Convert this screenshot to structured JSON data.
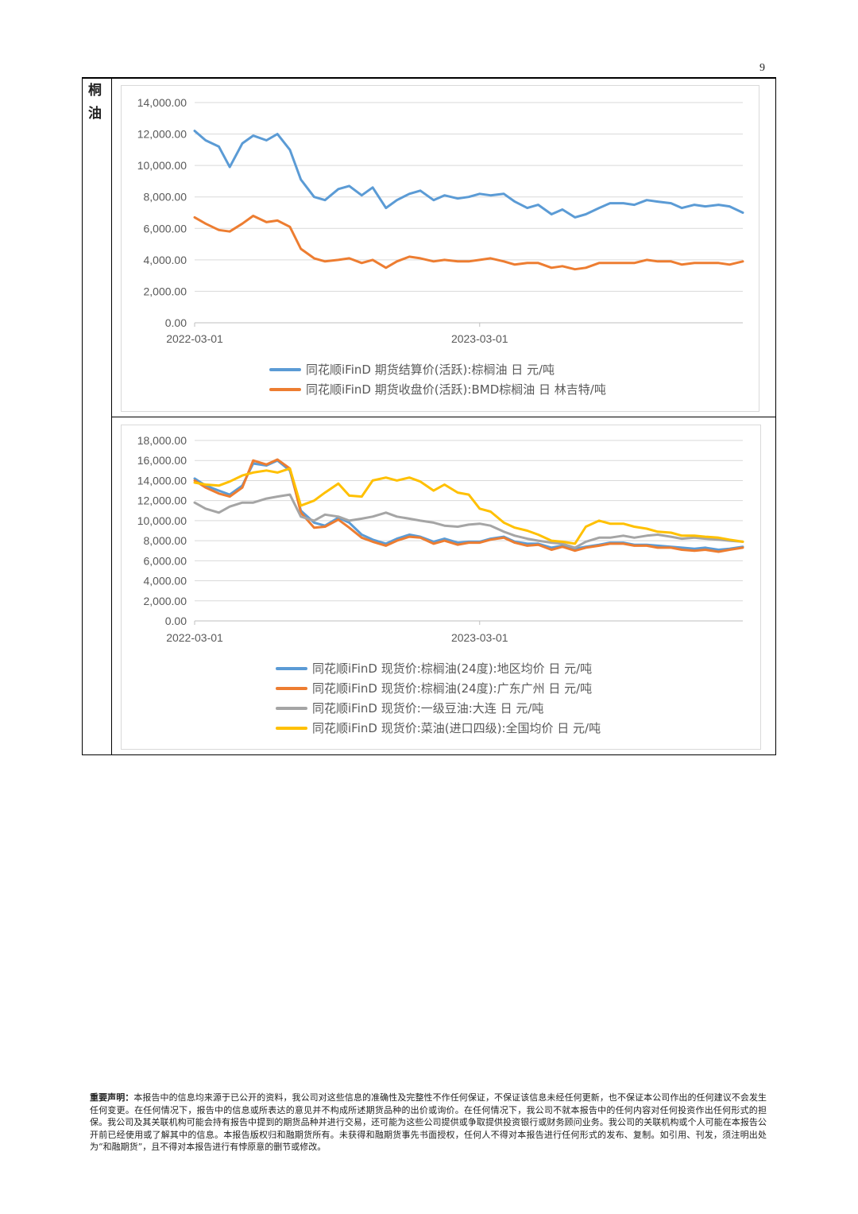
{
  "page": {
    "number": "9"
  },
  "section": {
    "label": "桐油"
  },
  "disclaimer": {
    "heading": "重要声明：",
    "text": "本报告中的信息均来源于已公开的资料，我公司对这些信息的准确性及完整性不作任何保证，不保证该信息未经任何更新，也不保证本公司作出的任何建议不会发生任何变更。在任何情况下，报告中的信息或所表达的意见并不构成所述期货品种的出价或询价。在任何情况下，我公司不就本报告中的任何内容对任何投资作出任何形式的担保。我公司及其关联机构可能会持有报告中提到的期货品种并进行交易，还可能为这些公司提供或争取提供投资银行或财务顾问业务。我公司的关联机构或个人可能在本报告公开前已经使用或了解其中的信息。本报告版权归和融期货所有。未获得和融期货事先书面授权，任何人不得对本报告进行任何形式的发布、复制。如引用、刊发，须注明出处为“和融期货”，且不得对本报告进行有悖原意的删节或修改。"
  },
  "chart_data": [
    {
      "type": "line",
      "title": "",
      "xlabel": "",
      "ylabel": "",
      "ylim": [
        0,
        14000
      ],
      "yticks": [
        "14,000.00",
        "12,000.00",
        "10,000.00",
        "8,000.00",
        "6,000.00",
        "4,000.00",
        "2,000.00",
        "0.00"
      ],
      "xticks": [
        "2022-03-01",
        "2023-03-01"
      ],
      "grid": true,
      "legend_position": "bottom",
      "x": [
        "2022-03-01",
        "2022-03-15",
        "2022-04-01",
        "2022-04-15",
        "2022-05-01",
        "2022-05-15",
        "2022-06-01",
        "2022-06-15",
        "2022-07-01",
        "2022-07-15",
        "2022-08-01",
        "2022-08-15",
        "2022-09-01",
        "2022-09-15",
        "2022-10-01",
        "2022-10-15",
        "2022-11-01",
        "2022-11-15",
        "2022-12-01",
        "2022-12-15",
        "2023-01-01",
        "2023-01-15",
        "2023-02-01",
        "2023-02-15",
        "2023-03-01",
        "2023-03-15",
        "2023-04-01",
        "2023-04-15",
        "2023-05-01",
        "2023-05-15",
        "2023-06-01",
        "2023-06-15",
        "2023-07-01",
        "2023-07-15",
        "2023-08-01",
        "2023-08-15",
        "2023-09-01",
        "2023-09-15",
        "2023-10-01",
        "2023-10-15",
        "2023-11-01",
        "2023-11-15",
        "2023-12-01",
        "2023-12-15",
        "2024-01-01",
        "2024-01-15",
        "2024-02-01"
      ],
      "series": [
        {
          "name": "同花顺iFinD 期货结算价(活跃):棕榈油 日 元/吨",
          "color": "#5b9bd5",
          "values": [
            12200,
            11600,
            11200,
            9900,
            11400,
            11900,
            11600,
            12000,
            11000,
            9100,
            8000,
            7800,
            8500,
            8700,
            8100,
            8600,
            7300,
            7800,
            8200,
            8400,
            7800,
            8100,
            7900,
            8000,
            8200,
            8100,
            8200,
            7700,
            7300,
            7500,
            6900,
            7200,
            6700,
            6900,
            7300,
            7600,
            7600,
            7500,
            7800,
            7700,
            7600,
            7300,
            7500,
            7400,
            7500,
            7400,
            7000
          ]
        },
        {
          "name": "同花顺iFinD 期货收盘价(活跃):BMD棕榈油 日 林吉特/吨",
          "color": "#ed7d31",
          "values": [
            6700,
            6300,
            5900,
            5800,
            6300,
            6800,
            6400,
            6500,
            6100,
            4700,
            4100,
            3900,
            4000,
            4100,
            3800,
            4000,
            3500,
            3900,
            4200,
            4100,
            3900,
            4000,
            3900,
            3900,
            4000,
            4100,
            3900,
            3700,
            3800,
            3800,
            3500,
            3600,
            3400,
            3500,
            3800,
            3800,
            3800,
            3800,
            4000,
            3900,
            3900,
            3700,
            3800,
            3800,
            3800,
            3700,
            3900
          ]
        }
      ]
    },
    {
      "type": "line",
      "title": "",
      "xlabel": "",
      "ylabel": "",
      "ylim": [
        0,
        18000
      ],
      "yticks": [
        "18,000.00",
        "16,000.00",
        "14,000.00",
        "12,000.00",
        "10,000.00",
        "8,000.00",
        "6,000.00",
        "4,000.00",
        "2,000.00",
        "0.00"
      ],
      "xticks": [
        "2022-03-01",
        "2023-03-01"
      ],
      "grid": true,
      "legend_position": "bottom",
      "x": [
        "2022-03-01",
        "2022-03-15",
        "2022-04-01",
        "2022-04-15",
        "2022-05-01",
        "2022-05-15",
        "2022-06-01",
        "2022-06-15",
        "2022-07-01",
        "2022-07-15",
        "2022-08-01",
        "2022-08-15",
        "2022-09-01",
        "2022-09-15",
        "2022-10-01",
        "2022-10-15",
        "2022-11-01",
        "2022-11-15",
        "2022-12-01",
        "2022-12-15",
        "2023-01-01",
        "2023-01-15",
        "2023-02-01",
        "2023-02-15",
        "2023-03-01",
        "2023-03-15",
        "2023-04-01",
        "2023-04-15",
        "2023-05-01",
        "2023-05-15",
        "2023-06-01",
        "2023-06-15",
        "2023-07-01",
        "2023-07-15",
        "2023-08-01",
        "2023-08-15",
        "2023-09-01",
        "2023-09-15",
        "2023-10-01",
        "2023-10-15",
        "2023-11-01",
        "2023-11-15",
        "2023-12-01",
        "2023-12-15",
        "2024-01-01",
        "2024-01-15",
        "2024-02-01"
      ],
      "series": [
        {
          "name": "同花顺iFinD 现货价:棕榈油(24度):地区均价 日 元/吨",
          "color": "#5b9bd5",
          "values": [
            14200,
            13500,
            13000,
            12600,
            13500,
            15700,
            15500,
            16000,
            15000,
            11000,
            9800,
            9500,
            10300,
            9800,
            8600,
            8100,
            7700,
            8200,
            8600,
            8400,
            7900,
            8200,
            7800,
            7900,
            7900,
            8200,
            8400,
            7900,
            7700,
            7700,
            7300,
            7500,
            7200,
            7400,
            7600,
            7800,
            7800,
            7600,
            7600,
            7500,
            7400,
            7300,
            7200,
            7300,
            7100,
            7200,
            7400
          ]
        },
        {
          "name": "同花顺iFinD 现货价:棕榈油(24度):广东广州 日 元/吨",
          "color": "#ed7d31",
          "values": [
            14000,
            13300,
            12700,
            12400,
            13300,
            16000,
            15600,
            16100,
            15200,
            10800,
            9300,
            9400,
            10100,
            9300,
            8300,
            7900,
            7500,
            8000,
            8400,
            8300,
            7700,
            8000,
            7600,
            7800,
            7800,
            8100,
            8300,
            7800,
            7500,
            7600,
            7100,
            7400,
            7000,
            7300,
            7500,
            7700,
            7700,
            7500,
            7500,
            7300,
            7300,
            7100,
            7000,
            7100,
            6900,
            7100,
            7300
          ]
        },
        {
          "name": "同花顺iFinD 现货价:一级豆油:大连 日 元/吨",
          "color": "#a5a5a5",
          "values": [
            11800,
            11200,
            10800,
            11400,
            11800,
            11800,
            12200,
            12400,
            12600,
            10400,
            10000,
            10600,
            10400,
            10000,
            10200,
            10400,
            10800,
            10400,
            10200,
            10000,
            9800,
            9500,
            9400,
            9600,
            9700,
            9500,
            8900,
            8500,
            8200,
            8000,
            7800,
            7700,
            7300,
            7900,
            8300,
            8300,
            8500,
            8300,
            8500,
            8600,
            8400,
            8200,
            8300,
            8200,
            8100,
            8000,
            7900
          ]
        },
        {
          "name": "同花顺iFinD 现货价:菜油(进口四级):全国均价 日 元/吨",
          "color": "#ffc000",
          "values": [
            13800,
            13600,
            13500,
            13900,
            14500,
            14800,
            15000,
            14800,
            15200,
            11500,
            12000,
            12800,
            13700,
            12500,
            12400,
            14000,
            14300,
            14000,
            14300,
            13900,
            13000,
            13600,
            12800,
            12600,
            11200,
            10900,
            9800,
            9300,
            9000,
            8600,
            8000,
            7900,
            7700,
            9400,
            10000,
            9700,
            9700,
            9400,
            9200,
            8900,
            8800,
            8500,
            8500,
            8400,
            8300,
            8100,
            7900
          ]
        }
      ]
    }
  ]
}
